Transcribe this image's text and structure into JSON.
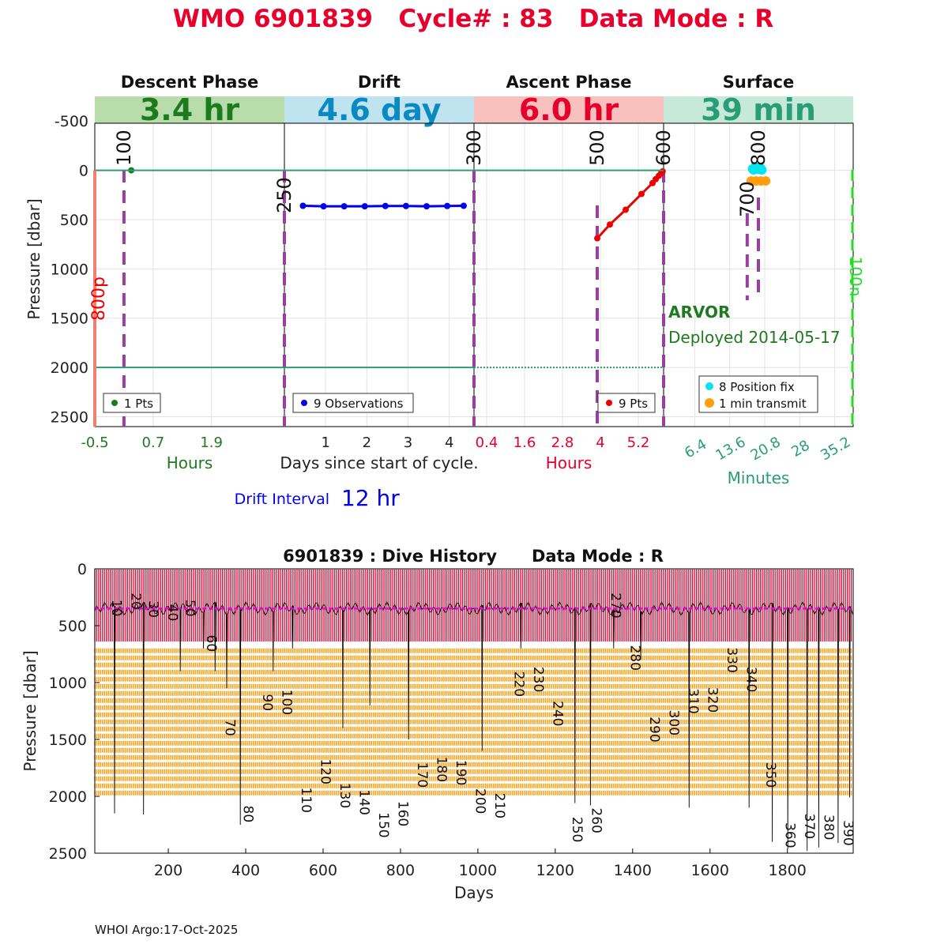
{
  "header": {
    "title": "WMO 6901839   Cycle# : 83   Data Mode : R",
    "footer": "WHOI Argo:17-Oct-2025"
  },
  "colors": {
    "title": "#e8002d",
    "descent": "#1e7a1e",
    "descent_bg": "#b8dcaa",
    "drift": "#0a8ac0",
    "drift_bg": "#bfe3ef",
    "ascent": "#e8002d",
    "ascent_bg": "#f8c1bd",
    "surface": "#2a9d78",
    "surface_bg": "#c6e9d9",
    "purple": "#9a3fa0",
    "drift_points": "#0000ee",
    "ascent_points": "#ee0000",
    "position_fix": "#00e5ee",
    "transmit": "#ff9f10",
    "history_red": "#c8123c",
    "history_orange": "#f5a623",
    "drift_line": "#ee00ee",
    "park_line": "#2a9d78",
    "green_dash": "#22dd22"
  },
  "chart_data": [
    {
      "type": "scatter",
      "title": "Cycle timeline",
      "ylabel": "Pressure [dbar]",
      "ylim": [
        2600,
        -750
      ],
      "yticks": [
        -500,
        0,
        500,
        1000,
        1500,
        2000,
        2500
      ],
      "panels": [
        {
          "name": "Descent Phase",
          "duration": "3.4 hr",
          "unit_label": "Hours",
          "xticks": [
            "-0.5",
            "0.7",
            "1.9"
          ],
          "xlim": [
            -0.5,
            3.4
          ],
          "legend": "1 Pts",
          "points": [
            {
              "x": 0.25,
              "y": 0
            }
          ],
          "markers": [
            {
              "label": "100",
              "x": 0.1
            }
          ]
        },
        {
          "name": "Drift",
          "duration": "4.6 day",
          "unit_label": "Days since start of cycle.",
          "xticks": [
            "1",
            "2",
            "3",
            "4"
          ],
          "xlim": [
            0,
            4.6
          ],
          "legend": "9 Observations",
          "points": [
            {
              "x": 0.45,
              "y": 360
            },
            {
              "x": 0.95,
              "y": 365
            },
            {
              "x": 1.45,
              "y": 365
            },
            {
              "x": 1.95,
              "y": 365
            },
            {
              "x": 2.45,
              "y": 362
            },
            {
              "x": 2.95,
              "y": 362
            },
            {
              "x": 3.45,
              "y": 365
            },
            {
              "x": 3.95,
              "y": 362
            },
            {
              "x": 4.35,
              "y": 360
            }
          ],
          "markers": [
            {
              "label": "250",
              "x": 0
            },
            {
              "label": "300",
              "x": 4.6
            }
          ]
        },
        {
          "name": "Ascent Phase",
          "duration": "6.0 hr",
          "unit_label": "Hours",
          "xticks": [
            "0.4",
            "1.6",
            "2.8",
            "4",
            "5.2"
          ],
          "xlim": [
            0,
            6.0
          ],
          "legend": "9 Pts",
          "points": [
            {
              "x": 3.9,
              "y": 690
            },
            {
              "x": 4.3,
              "y": 550
            },
            {
              "x": 4.8,
              "y": 400
            },
            {
              "x": 5.3,
              "y": 240
            },
            {
              "x": 5.65,
              "y": 130
            },
            {
              "x": 5.75,
              "y": 90
            },
            {
              "x": 5.85,
              "y": 55
            },
            {
              "x": 5.92,
              "y": 30
            },
            {
              "x": 5.97,
              "y": 10
            }
          ],
          "markers": [
            {
              "label": "500",
              "x": 3.9
            },
            {
              "label": "600",
              "x": 6.0
            }
          ]
        },
        {
          "name": "Surface",
          "duration": "39 min",
          "unit_label": "Minutes",
          "xticks": [
            "6.4",
            "13.6",
            "20.8",
            "28",
            "35.2"
          ],
          "xlim": [
            0,
            39
          ],
          "legend_fix": "8 Position fix",
          "legend_transmit": "1 min transmit",
          "position_fixes": [
            {
              "x": 18.5,
              "y": 60
            },
            {
              "x": 19.0,
              "y": 40
            },
            {
              "x": 19.5,
              "y": 55
            },
            {
              "x": 20.0,
              "y": 45
            },
            {
              "x": 18.8,
              "y": 30
            },
            {
              "x": 19.8,
              "y": 35
            },
            {
              "x": 18.3,
              "y": 50
            },
            {
              "x": 20.2,
              "y": 60
            }
          ],
          "transmits": [
            {
              "x": 18.0,
              "y": 60
            },
            {
              "x": 19.0,
              "y": 60
            },
            {
              "x": 20.0,
              "y": 60
            },
            {
              "x": 21.0,
              "y": 60
            }
          ],
          "markers": [
            {
              "label": "700",
              "x": 17.2
            },
            {
              "label": "800",
              "x": 19.5
            }
          ],
          "float_type": "ARVOR",
          "deployed": "Deployed 2014-05-17",
          "side_label": "100n"
        }
      ],
      "left_label": "800p",
      "drift_interval_label": "Drift Interval",
      "drift_interval_value": "12 hr"
    },
    {
      "type": "line",
      "title": "6901839 : Dive History      Data Mode : R",
      "xlabel": "Days",
      "ylabel": "Pressure [dbar]",
      "xlim": [
        10,
        1970
      ],
      "ylim": [
        2500,
        0
      ],
      "xticks": [
        200,
        400,
        600,
        800,
        1000,
        1200,
        1400,
        1600,
        1800
      ],
      "yticks": [
        0,
        500,
        1000,
        1500,
        2000,
        2500
      ],
      "cycle_days": 5,
      "cycle_count": 392,
      "drift_pressure": 350,
      "profile_pressure": 2000,
      "transition_pressure": 700,
      "cycle_labels": [
        {
          "label": "10",
          "day": 55,
          "p": 270
        },
        {
          "label": "20",
          "day": 105,
          "p": 210
        },
        {
          "label": "30",
          "day": 150,
          "p": 280
        },
        {
          "label": "40",
          "day": 200,
          "p": 310
        },
        {
          "label": "50",
          "day": 245,
          "p": 270
        },
        {
          "label": "60",
          "day": 300,
          "p": 580
        },
        {
          "label": "70",
          "day": 348,
          "p": 1320
        },
        {
          "label": "80",
          "day": 395,
          "p": 2080
        },
        {
          "label": "90",
          "day": 445,
          "p": 1100
        },
        {
          "label": "100",
          "day": 495,
          "p": 1060
        },
        {
          "label": "110",
          "day": 545,
          "p": 1920
        },
        {
          "label": "120",
          "day": 595,
          "p": 1670
        },
        {
          "label": "130",
          "day": 645,
          "p": 1880
        },
        {
          "label": "140",
          "day": 695,
          "p": 1940
        },
        {
          "label": "150",
          "day": 745,
          "p": 2140
        },
        {
          "label": "160",
          "day": 795,
          "p": 2040
        },
        {
          "label": "170",
          "day": 845,
          "p": 1700
        },
        {
          "label": "180",
          "day": 895,
          "p": 1650
        },
        {
          "label": "190",
          "day": 945,
          "p": 1680
        },
        {
          "label": "200",
          "day": 995,
          "p": 1930
        },
        {
          "label": "210",
          "day": 1045,
          "p": 1970
        },
        {
          "label": "220",
          "day": 1095,
          "p": 900
        },
        {
          "label": "230",
          "day": 1145,
          "p": 860
        },
        {
          "label": "240",
          "day": 1195,
          "p": 1160
        },
        {
          "label": "250",
          "day": 1245,
          "p": 2180
        },
        {
          "label": "260",
          "day": 1295,
          "p": 2100
        },
        {
          "label": "270",
          "day": 1345,
          "p": 210
        },
        {
          "label": "280",
          "day": 1395,
          "p": 670
        },
        {
          "label": "290",
          "day": 1445,
          "p": 1300
        },
        {
          "label": "300",
          "day": 1495,
          "p": 1240
        },
        {
          "label": "310",
          "day": 1545,
          "p": 1050
        },
        {
          "label": "320",
          "day": 1595,
          "p": 1040
        },
        {
          "label": "330",
          "day": 1645,
          "p": 690
        },
        {
          "label": "340",
          "day": 1695,
          "p": 860
        },
        {
          "label": "350",
          "day": 1745,
          "p": 1700
        },
        {
          "label": "360",
          "day": 1795,
          "p": 2230
        },
        {
          "label": "370",
          "day": 1845,
          "p": 2150
        },
        {
          "label": "380",
          "day": 1895,
          "p": 2160
        },
        {
          "label": "390",
          "day": 1945,
          "p": 2210
        }
      ]
    }
  ]
}
